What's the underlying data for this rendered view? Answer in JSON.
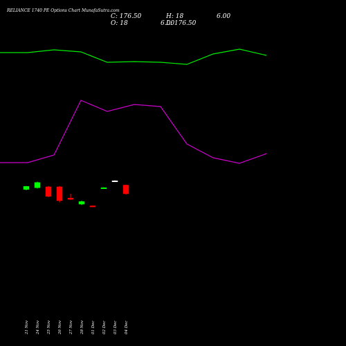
{
  "chart_data": {
    "type": "candlestick",
    "title": "RELIANCE 1740 PE Options Chart MunafaSutra.com",
    "ohlc_readout": {
      "close": "C: 176.50",
      "high": "H: 18",
      "high_extra": "6.00",
      "open": "O: 18",
      "low": "6.00",
      "low_extra": "L: 176.50"
    },
    "colors": {
      "up": "#00ff00",
      "down": "#ff0000",
      "neutral": "#ffffff",
      "line_green": "#00ee00",
      "line_magenta": "#cc00cc",
      "background": "#000000"
    },
    "categories": [
      "21 Nov",
      "24 Nov",
      "25 Nov",
      "26 Nov",
      "27 Nov",
      "28 Nov",
      "01 Dec",
      "02 Dec",
      "03 Dec",
      "04 Dec"
    ],
    "candles": [
      {
        "open": 238,
        "high": 242,
        "low": 237,
        "close": 241.5
      },
      {
        "open": 240,
        "high": 247,
        "low": 239,
        "close": 246
      },
      {
        "open": 241,
        "high": 242,
        "low": 229,
        "close": 230
      },
      {
        "open": 241,
        "high": 242,
        "low": 223,
        "close": 225
      },
      {
        "open": 228,
        "high": 233,
        "low": 226,
        "close": 226.5
      },
      {
        "open": 221,
        "high": 225,
        "low": 220,
        "close": 224
      },
      {
        "open": 219,
        "high": 219.5,
        "low": 217.5,
        "close": 218
      },
      {
        "open": 240,
        "high": 240.5,
        "low": 239.5,
        "close": 240
      },
      {
        "open": 248,
        "high": 248.5,
        "low": 247.5,
        "close": 248
      },
      {
        "open": 243,
        "high": 243.5,
        "low": 232,
        "close": 233
      }
    ],
    "line_series": [
      {
        "color": "green",
        "x": [
          0,
          40,
          78,
          117,
          155,
          194,
          232,
          270,
          308,
          346,
          385
        ],
        "values": [
          76,
          76,
          72,
          75,
          90,
          89,
          90,
          93,
          78,
          71,
          80
        ]
      },
      {
        "color": "magenta",
        "x": [
          0,
          40,
          78,
          117,
          155,
          194,
          232,
          270,
          308,
          346,
          385
        ],
        "values": [
          235,
          235,
          224,
          145,
          161,
          151,
          154,
          208,
          228,
          236,
          222
        ]
      }
    ],
    "xlabel": "",
    "ylabel": "",
    "grid": false
  }
}
